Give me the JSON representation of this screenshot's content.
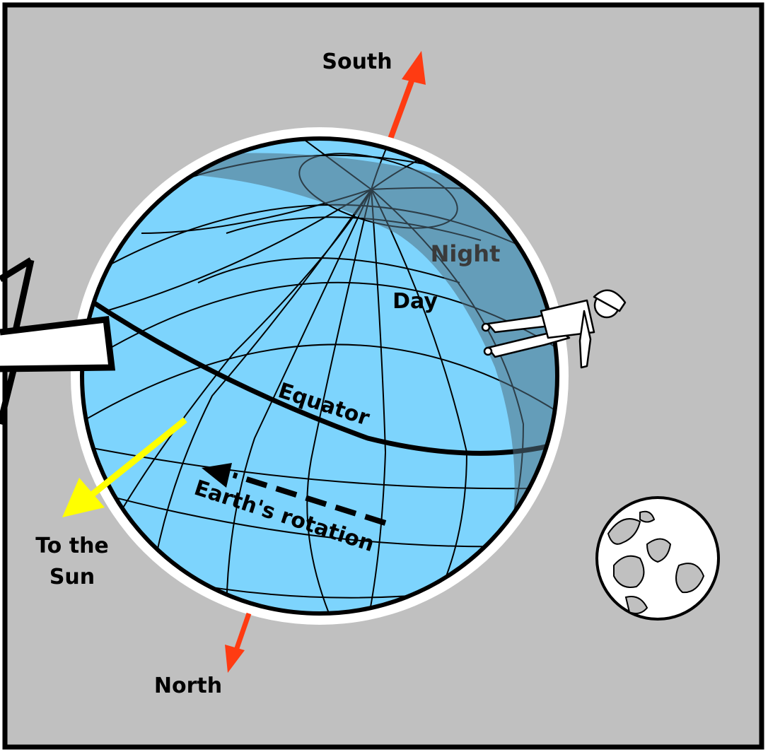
{
  "labels": {
    "south": "South",
    "north": "North",
    "night": "Night",
    "day": "Day",
    "equator": "Equator",
    "rotation": "Earth's rotation",
    "sun_line1": "To the",
    "sun_line2": "Sun"
  },
  "colors": {
    "background": "#c0c0c0",
    "ocean_day": "#7dd4fd",
    "night_shade": "#6e8fa3",
    "axis_arrow": "#ff3b12",
    "sun_arrow": "#ffff00",
    "outline": "#000000"
  },
  "icons": {
    "astronaut": "floating-figure-icon",
    "moon": "moon-icon",
    "telescope": "telescope-beam-icon"
  }
}
